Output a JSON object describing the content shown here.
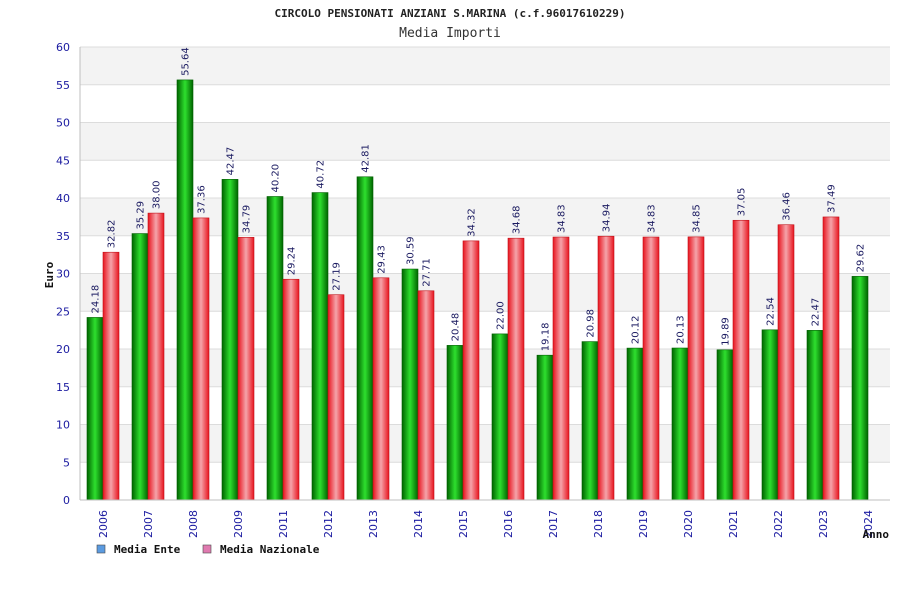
{
  "chart_data": {
    "type": "bar",
    "title": "CIRCOLO PENSIONATI ANZIANI S.MARINA (c.f.96017610229)",
    "subtitle": "Media Importi",
    "xlabel": "Anno",
    "ylabel": "Euro",
    "ylim": [
      0,
      60
    ],
    "ytick_step": 5,
    "yticks": [
      "0",
      "5",
      "10",
      "15",
      "20",
      "25",
      "30",
      "35",
      "40",
      "45",
      "50",
      "55",
      "60"
    ],
    "categories": [
      "2006",
      "2007",
      "2008",
      "2009",
      "2011",
      "2012",
      "2013",
      "2014",
      "2015",
      "2016",
      "2017",
      "2018",
      "2019",
      "2020",
      "2021",
      "2022",
      "2023",
      "2024"
    ],
    "series": [
      {
        "name": "Media Ente",
        "color": "#00b400",
        "values": [
          24.18,
          35.29,
          55.64,
          42.47,
          40.2,
          40.72,
          42.81,
          30.59,
          20.48,
          22.0,
          19.18,
          20.98,
          20.12,
          20.13,
          19.89,
          22.54,
          22.47,
          29.62
        ],
        "labels": [
          "24.18",
          "35.29",
          "55.64",
          "42.47",
          "40.20",
          "40.72",
          "42.81",
          "30.59",
          "20.48",
          "22.00",
          "19.18",
          "20.98",
          "20.12",
          "20.13",
          "19.89",
          "22.54",
          "22.47",
          "29.62"
        ]
      },
      {
        "name": "Media Nazionale",
        "color": "#e8202a",
        "values": [
          32.82,
          38.0,
          37.36,
          34.79,
          29.24,
          27.19,
          29.43,
          27.71,
          34.32,
          34.68,
          34.83,
          34.94,
          34.83,
          34.85,
          37.05,
          36.46,
          37.49,
          null
        ],
        "labels": [
          "32.82",
          "38.00",
          "37.36",
          "34.79",
          "29.24",
          "27.19",
          "29.43",
          "27.71",
          "34.32",
          "34.68",
          "34.83",
          "34.94",
          "34.83",
          "34.85",
          "37.05",
          "36.46",
          "37.49",
          ""
        ]
      }
    ],
    "legend": {
      "placement": "bottom-left",
      "items": [
        {
          "label": "Media Ente",
          "swatch_color": "#5b9be0"
        },
        {
          "label": "Media Nazionale",
          "swatch_color": "#e07ab0"
        }
      ]
    },
    "grid": true,
    "band_colors": [
      "#f3f3f3",
      "#ffffff"
    ]
  }
}
